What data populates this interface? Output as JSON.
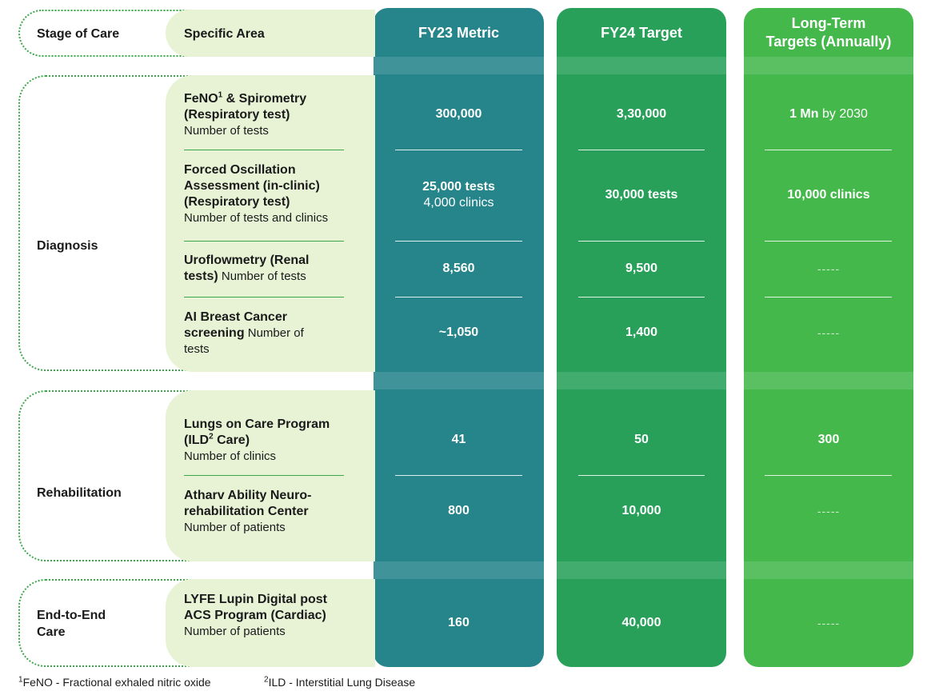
{
  "header": {
    "stage": "Stage of Care",
    "area": "Specific Area",
    "fy23": "FY23 Metric",
    "fy24": "FY24 Target",
    "lt_line1": "Long-Term",
    "lt_line2": "Targets (Annually)"
  },
  "stages": {
    "diagnosis": "Diagnosis",
    "rehab": "Rehabilitation",
    "e2e_line1": "End-to-End",
    "e2e_line2": "Care"
  },
  "rows": [
    {
      "area_bold": "FeNO",
      "area_sup": "1",
      "area_bold2": " & Spirometry (Respiratory test)",
      "area_sub": "Number of tests",
      "fy23": "300,000",
      "fy24": "3,30,000",
      "lt_bold": "1 Mn",
      "lt_light": " by 2030"
    },
    {
      "area_bold": "Forced Oscillation Assessment (in-clinic) (Respiratory test)",
      "area_sub": "Number of tests and clinics",
      "fy23": "25,000 tests",
      "fy23_sub": "4,000 clinics",
      "fy24": "30,000 tests",
      "lt": "10,000 clinics"
    },
    {
      "area_bold": "Uroflowmetry (Renal tests)",
      "area_sub": " Number of tests",
      "fy23": "8,560",
      "fy24": "9,500",
      "lt": "-----"
    },
    {
      "area_bold": "AI Breast Cancer screening",
      "area_sub": " Number of tests",
      "fy23": "~1,050",
      "fy24": "1,400",
      "lt": "-----"
    },
    {
      "area_bold": "Lungs on Care Program (ILD",
      "area_sup": "2",
      "area_bold2": " Care)",
      "area_sub": "Number of clinics",
      "fy23": "41",
      "fy24": "50",
      "lt": "300"
    },
    {
      "area_bold": "Atharv Ability Neuro-rehabilitation Center",
      "area_sub": "Number of patients",
      "fy23": "800",
      "fy24": "10,000",
      "lt": "-----"
    },
    {
      "area_bold": "LYFE Lupin Digital post ACS Program (Cardiac)",
      "area_sub": " Number of patients",
      "fy23": "160",
      "fy24": "40,000",
      "lt": "-----"
    }
  ],
  "footnotes": {
    "f1_sup": "1",
    "f1_text": "FeNO - Fractional exhaled nitric oxide",
    "f2_sup": "2",
    "f2_text": "ILD - Interstitial Lung Disease"
  },
  "colors": {
    "fy23": "#26858a",
    "fy24": "#28a05a",
    "long_term": "#45b84c",
    "area_bg": "#e8f3d6",
    "dotted_border": "#3aa84a"
  }
}
